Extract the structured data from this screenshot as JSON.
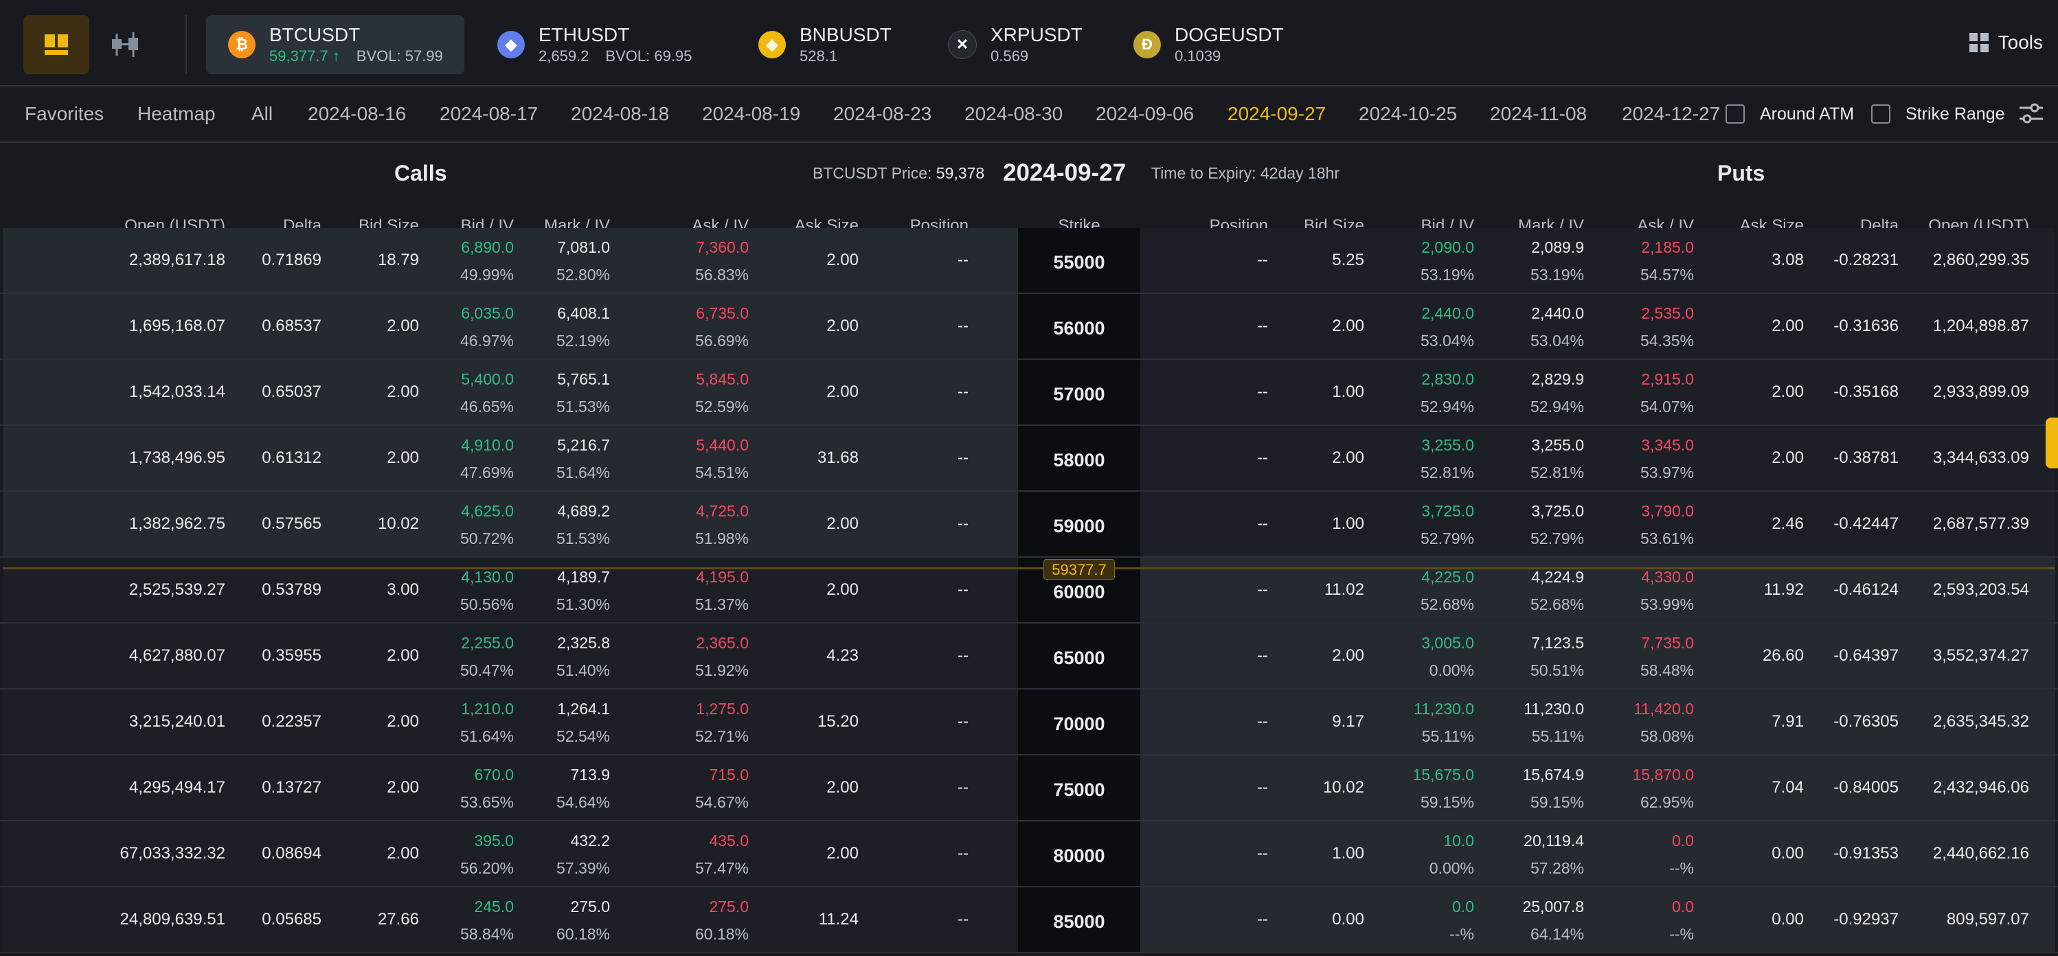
{
  "assets": [
    {
      "symbol": "BTCUSDT",
      "price": "59,377.7",
      "arrow": "↑",
      "bvol_label": "BVOL:",
      "bvol": "57.99",
      "icon": "bitcoin-icon",
      "color": "#f7931a",
      "glyph": "₿"
    },
    {
      "symbol": "ETHUSDT",
      "price": "2,659.2",
      "arrow": "",
      "bvol_label": "BVOL:",
      "bvol": "69.95",
      "icon": "ethereum-icon",
      "color": "#627eea",
      "glyph": "◆"
    },
    {
      "symbol": "BNBUSDT",
      "price": "528.1",
      "icon": "bnb-icon",
      "color": "#f0b90b",
      "glyph": "◈"
    },
    {
      "symbol": "XRPUSDT",
      "price": "0.569",
      "icon": "xrp-icon",
      "color": "#23292f",
      "glyph": "✕"
    },
    {
      "symbol": "DOGEUSDT",
      "price": "0.1039",
      "icon": "dogecoin-icon",
      "color": "#c2a633",
      "glyph": "Ð"
    }
  ],
  "tools_label": "Tools",
  "tabs": [
    "Favorites",
    "Heatmap",
    "All",
    "2024-08-16",
    "2024-08-17",
    "2024-08-18",
    "2024-08-19",
    "2024-08-23",
    "2024-08-30",
    "2024-09-06",
    "2024-09-27",
    "2024-10-25",
    "2024-11-08",
    "2024-12-27"
  ],
  "selected_tab": "2024-09-27",
  "checkboxes": {
    "around_atm": "Around ATM",
    "strike_range": "Strike Range"
  },
  "header": {
    "calls": "Calls",
    "puts": "Puts",
    "price_label": "BTCUSDT Price:",
    "price_value": "59,378",
    "expiry_date": "2024-09-27",
    "time_to_expiry": "Time to Expiry: 42day 18hr"
  },
  "columns": {
    "call": [
      "Open (USDT)",
      "Delta",
      "Bid Size",
      "Bid / IV",
      "Mark / IV",
      "Ask / IV",
      "Ask Size",
      "Position"
    ],
    "strike": "Strike",
    "put": [
      "Position",
      "Bid Size",
      "Bid / IV",
      "Mark / IV",
      "Ask / IV",
      "Ask Size",
      "Delta",
      "Open (USDT)"
    ]
  },
  "atm_marker": "59377.7",
  "rows": [
    {
      "strike": "55000",
      "itm_call": true,
      "call": {
        "open": "2,389,617.18",
        "delta": "0.71869",
        "bid_size": "18.79",
        "bid": "6,890.0",
        "bid_iv": "49.99%",
        "mark": "7,081.0",
        "mark_iv": "52.80%",
        "ask": "7,360.0",
        "ask_iv": "56.83%",
        "ask_size": "2.00",
        "position": "--"
      },
      "put": {
        "position": "--",
        "bid_size": "5.25",
        "bid": "2,090.0",
        "bid_iv": "53.19%",
        "mark": "2,089.9",
        "mark_iv": "53.19%",
        "ask": "2,185.0",
        "ask_iv": "54.57%",
        "ask_size": "3.08",
        "delta": "-0.28231",
        "open": "2,860,299.35"
      }
    },
    {
      "strike": "56000",
      "itm_call": true,
      "call": {
        "open": "1,695,168.07",
        "delta": "0.68537",
        "bid_size": "2.00",
        "bid": "6,035.0",
        "bid_iv": "46.97%",
        "mark": "6,408.1",
        "mark_iv": "52.19%",
        "ask": "6,735.0",
        "ask_iv": "56.69%",
        "ask_size": "2.00",
        "position": "--"
      },
      "put": {
        "position": "--",
        "bid_size": "2.00",
        "bid": "2,440.0",
        "bid_iv": "53.04%",
        "mark": "2,440.0",
        "mark_iv": "53.04%",
        "ask": "2,535.0",
        "ask_iv": "54.35%",
        "ask_size": "2.00",
        "delta": "-0.31636",
        "open": "1,204,898.87"
      }
    },
    {
      "strike": "57000",
      "itm_call": true,
      "call": {
        "open": "1,542,033.14",
        "delta": "0.65037",
        "bid_size": "2.00",
        "bid": "5,400.0",
        "bid_iv": "46.65%",
        "mark": "5,765.1",
        "mark_iv": "51.53%",
        "ask": "5,845.0",
        "ask_iv": "52.59%",
        "ask_size": "2.00",
        "position": "--"
      },
      "put": {
        "position": "--",
        "bid_size": "1.00",
        "bid": "2,830.0",
        "bid_iv": "52.94%",
        "mark": "2,829.9",
        "mark_iv": "52.94%",
        "ask": "2,915.0",
        "ask_iv": "54.07%",
        "ask_size": "2.00",
        "delta": "-0.35168",
        "open": "2,933,899.09"
      }
    },
    {
      "strike": "58000",
      "itm_call": true,
      "call": {
        "open": "1,738,496.95",
        "delta": "0.61312",
        "bid_size": "2.00",
        "bid": "4,910.0",
        "bid_iv": "47.69%",
        "mark": "5,216.7",
        "mark_iv": "51.64%",
        "ask": "5,440.0",
        "ask_iv": "54.51%",
        "ask_size": "31.68",
        "position": "--"
      },
      "put": {
        "position": "--",
        "bid_size": "2.00",
        "bid": "3,255.0",
        "bid_iv": "52.81%",
        "mark": "3,255.0",
        "mark_iv": "52.81%",
        "ask": "3,345.0",
        "ask_iv": "53.97%",
        "ask_size": "2.00",
        "delta": "-0.38781",
        "open": "3,344,633.09"
      }
    },
    {
      "strike": "59000",
      "itm_call": true,
      "call": {
        "open": "1,382,962.75",
        "delta": "0.57565",
        "bid_size": "10.02",
        "bid": "4,625.0",
        "bid_iv": "50.72%",
        "mark": "4,689.2",
        "mark_iv": "51.53%",
        "ask": "4,725.0",
        "ask_iv": "51.98%",
        "ask_size": "2.00",
        "position": "--"
      },
      "put": {
        "position": "--",
        "bid_size": "1.00",
        "bid": "3,725.0",
        "bid_iv": "52.79%",
        "mark": "3,725.0",
        "mark_iv": "52.79%",
        "ask": "3,790.0",
        "ask_iv": "53.61%",
        "ask_size": "2.46",
        "delta": "-0.42447",
        "open": "2,687,577.39"
      }
    },
    {
      "strike": "60000",
      "itm_call": false,
      "call": {
        "open": "2,525,539.27",
        "delta": "0.53789",
        "bid_size": "3.00",
        "bid": "4,130.0",
        "bid_iv": "50.56%",
        "mark": "4,189.7",
        "mark_iv": "51.30%",
        "ask": "4,195.0",
        "ask_iv": "51.37%",
        "ask_size": "2.00",
        "position": "--"
      },
      "put": {
        "position": "--",
        "bid_size": "11.02",
        "bid": "4,225.0",
        "bid_iv": "52.68%",
        "mark": "4,224.9",
        "mark_iv": "52.68%",
        "ask": "4,330.0",
        "ask_iv": "53.99%",
        "ask_size": "11.92",
        "delta": "-0.46124",
        "open": "2,593,203.54"
      }
    },
    {
      "strike": "65000",
      "itm_call": false,
      "call": {
        "open": "4,627,880.07",
        "delta": "0.35955",
        "bid_size": "2.00",
        "bid": "2,255.0",
        "bid_iv": "50.47%",
        "mark": "2,325.8",
        "mark_iv": "51.40%",
        "ask": "2,365.0",
        "ask_iv": "51.92%",
        "ask_size": "4.23",
        "position": "--"
      },
      "put": {
        "position": "--",
        "bid_size": "2.00",
        "bid": "3,005.0",
        "bid_iv": "0.00%",
        "mark": "7,123.5",
        "mark_iv": "50.51%",
        "ask": "7,735.0",
        "ask_iv": "58.48%",
        "ask_size": "26.60",
        "delta": "-0.64397",
        "open": "3,552,374.27"
      }
    },
    {
      "strike": "70000",
      "itm_call": false,
      "call": {
        "open": "3,215,240.01",
        "delta": "0.22357",
        "bid_size": "2.00",
        "bid": "1,210.0",
        "bid_iv": "51.64%",
        "mark": "1,264.1",
        "mark_iv": "52.54%",
        "ask": "1,275.0",
        "ask_iv": "52.71%",
        "ask_size": "15.20",
        "position": "--"
      },
      "put": {
        "position": "--",
        "bid_size": "9.17",
        "bid": "11,230.0",
        "bid_iv": "55.11%",
        "mark": "11,230.0",
        "mark_iv": "55.11%",
        "ask": "11,420.0",
        "ask_iv": "58.08%",
        "ask_size": "7.91",
        "delta": "-0.76305",
        "open": "2,635,345.32"
      }
    },
    {
      "strike": "75000",
      "itm_call": false,
      "call": {
        "open": "4,295,494.17",
        "delta": "0.13727",
        "bid_size": "2.00",
        "bid": "670.0",
        "bid_iv": "53.65%",
        "mark": "713.9",
        "mark_iv": "54.64%",
        "ask": "715.0",
        "ask_iv": "54.67%",
        "ask_size": "2.00",
        "position": "--"
      },
      "put": {
        "position": "--",
        "bid_size": "10.02",
        "bid": "15,675.0",
        "bid_iv": "59.15%",
        "mark": "15,674.9",
        "mark_iv": "59.15%",
        "ask": "15,870.0",
        "ask_iv": "62.95%",
        "ask_size": "7.04",
        "delta": "-0.84005",
        "open": "2,432,946.06"
      }
    },
    {
      "strike": "80000",
      "itm_call": false,
      "call": {
        "open": "67,033,332.32",
        "delta": "0.08694",
        "bid_size": "2.00",
        "bid": "395.0",
        "bid_iv": "56.20%",
        "mark": "432.2",
        "mark_iv": "57.39%",
        "ask": "435.0",
        "ask_iv": "57.47%",
        "ask_size": "2.00",
        "position": "--"
      },
      "put": {
        "position": "--",
        "bid_size": "1.00",
        "bid": "10.0",
        "bid_iv": "0.00%",
        "mark": "20,119.4",
        "mark_iv": "57.28%",
        "ask": "0.0",
        "ask_iv": "--%",
        "ask_size": "0.00",
        "delta": "-0.91353",
        "open": "2,440,662.16"
      }
    },
    {
      "strike": "85000",
      "itm_call": false,
      "call": {
        "open": "24,809,639.51",
        "delta": "0.05685",
        "bid_size": "27.66",
        "bid": "245.0",
        "bid_iv": "58.84%",
        "mark": "275.0",
        "mark_iv": "60.18%",
        "ask": "275.0",
        "ask_iv": "60.18%",
        "ask_size": "11.24",
        "position": "--"
      },
      "put": {
        "position": "--",
        "bid_size": "0.00",
        "bid": "0.0",
        "bid_iv": "--%",
        "mark": "25,007.8",
        "mark_iv": "64.14%",
        "ask": "0.0",
        "ask_iv": "--%",
        "ask_size": "0.00",
        "delta": "-0.92937",
        "open": "809,597.07"
      }
    }
  ]
}
